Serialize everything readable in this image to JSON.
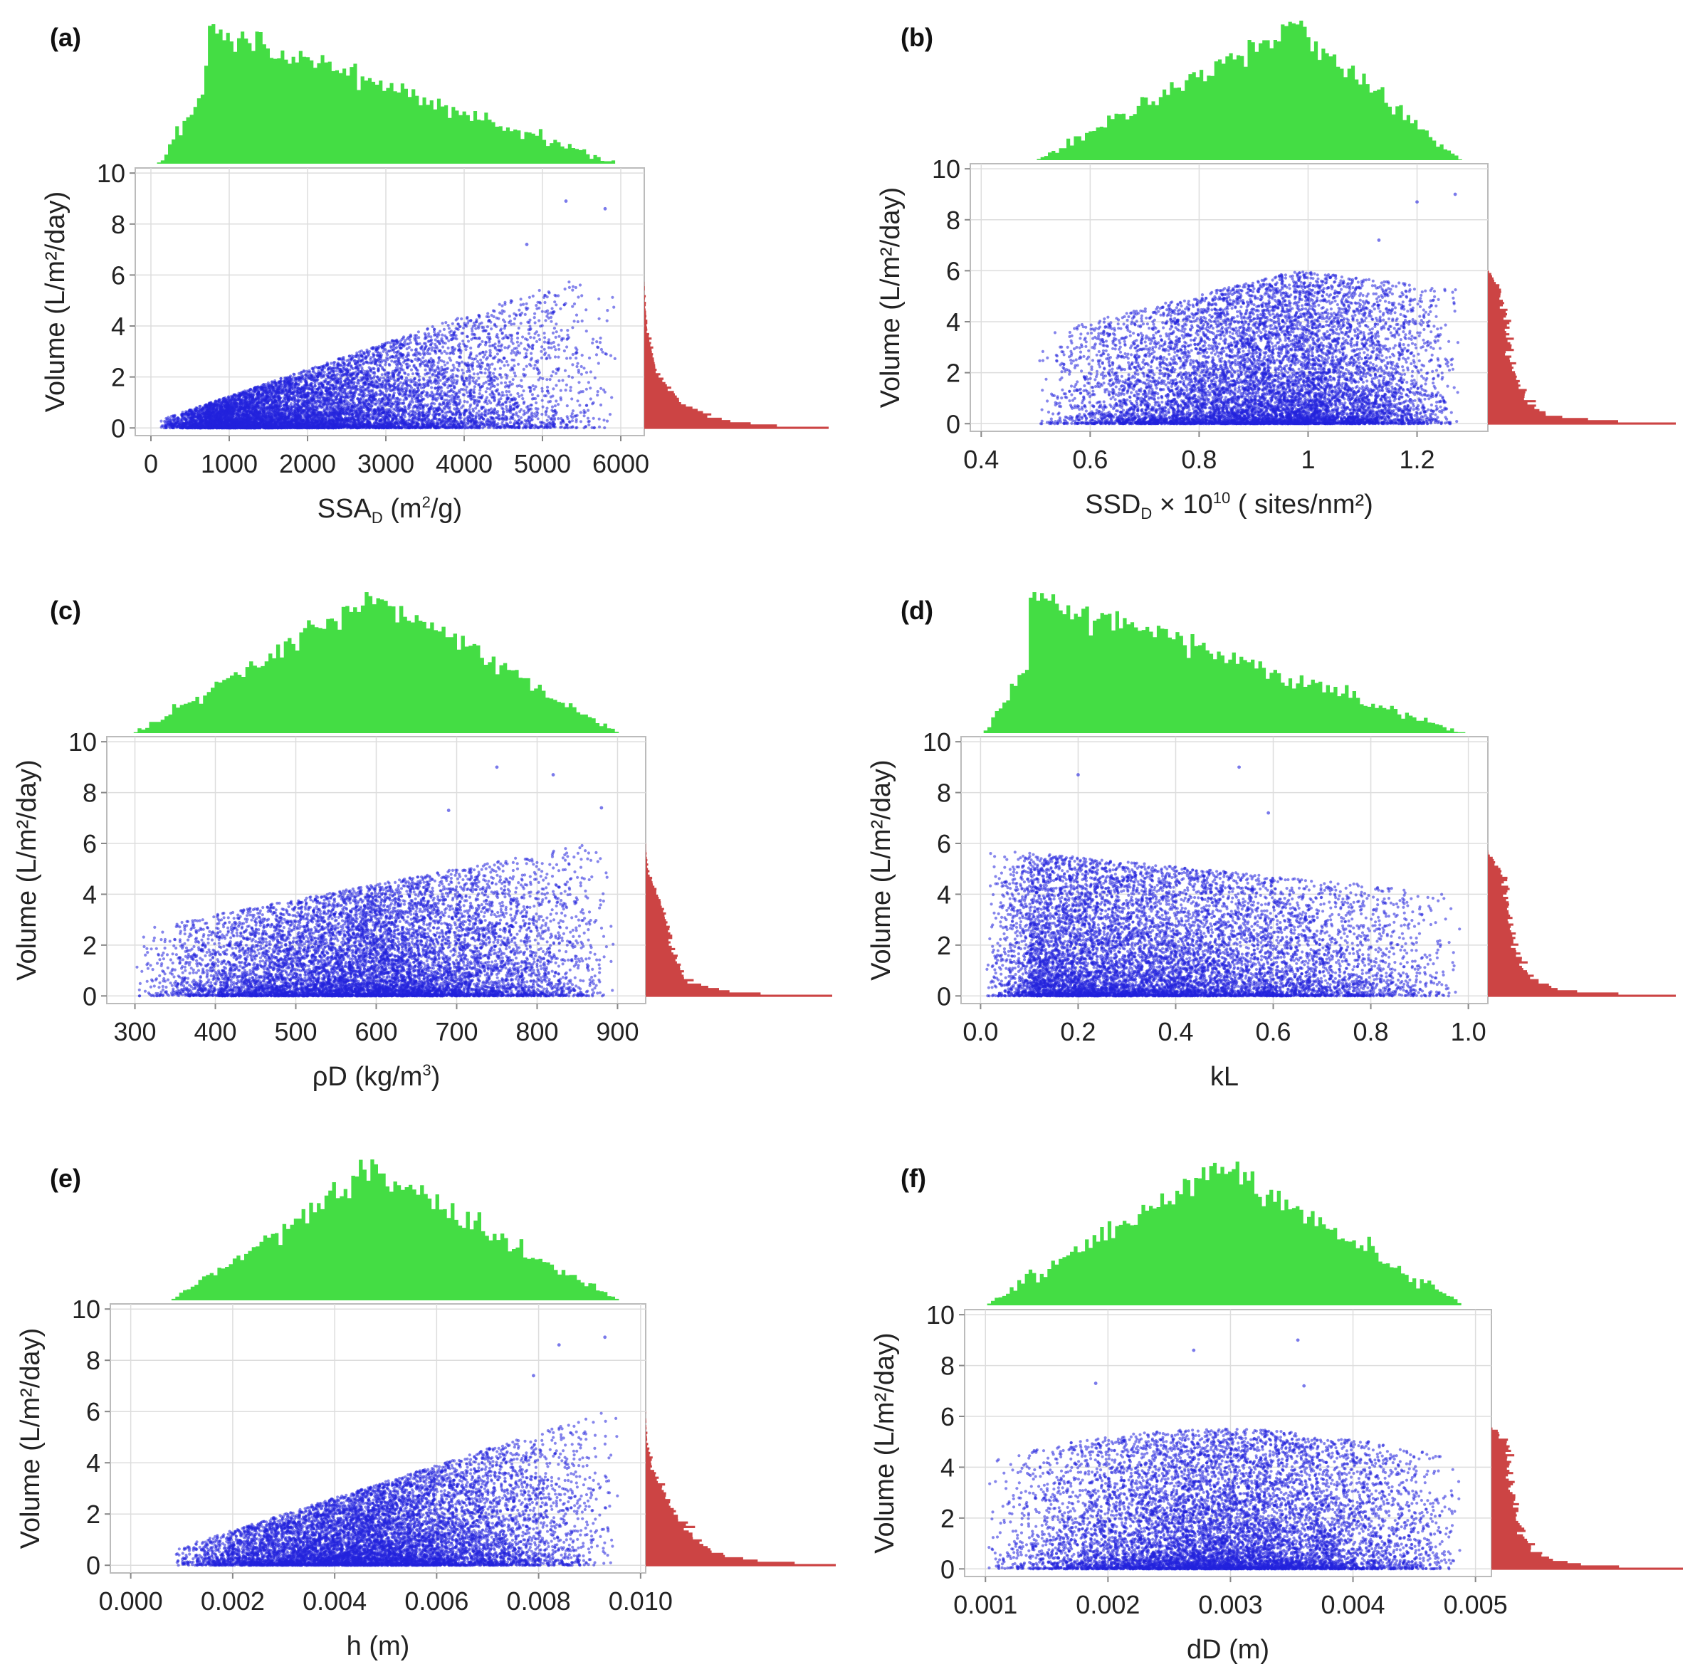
{
  "figure": {
    "description_note": "Six scatter plots with marginal histograms",
    "colors": {
      "scatter": "#2222dd",
      "top_hist": "#44dd44",
      "right_hist": "#cc4444",
      "grid": "#dddddd",
      "frame": "#bbbbbb"
    }
  },
  "chart_data": [
    {
      "type": "scatter",
      "panel_label": "(a)",
      "xlabel": {
        "main": "SSA",
        "sub": "D",
        "rest": " (m",
        "sup": "2",
        "end": "/g)"
      },
      "ylabel": "Volume (L/m²/day)",
      "xlim": [
        -200,
        6300
      ],
      "ylim": [
        -0.3,
        10.2
      ],
      "xticks": [
        0,
        1000,
        2000,
        3000,
        4000,
        5000,
        6000
      ],
      "xtick_labels": [
        "0",
        "1000",
        "2000",
        "3000",
        "4000",
        "5000",
        "6000"
      ],
      "yticks": [
        0,
        2,
        4,
        6,
        8,
        10
      ],
      "ytick_labels": [
        "0",
        "2",
        "4",
        "6",
        "8",
        "10"
      ],
      "x_range": [
        100,
        6000
      ],
      "y_model": {
        "kind": "linear",
        "x0": 100,
        "x1": 6000,
        "ymax0": 0.3,
        "ymax1": 6.5,
        "skew": 1.8
      },
      "top_hist_shape": {
        "kind": "decreasing",
        "start": 100,
        "mode": 700,
        "end": 5950
      },
      "outliers": [
        [
          5300,
          8.9
        ],
        [
          5800,
          8.6
        ],
        [
          4800,
          7.2
        ]
      ]
    },
    {
      "type": "scatter",
      "panel_label": "(b)",
      "xlabel": {
        "main": "SSD",
        "sub": "D",
        "rest": " × 10",
        "sup": "10",
        "end": " ( sites/nm²)"
      },
      "ylabel": "Volume (L/m²/day)",
      "xlim": [
        0.38,
        1.33
      ],
      "ylim": [
        -0.3,
        10.2
      ],
      "xticks": [
        0.4,
        0.6,
        0.8,
        1.0,
        1.2
      ],
      "xtick_labels": [
        "0.4",
        "0.6",
        "0.8",
        "1",
        "1.2"
      ],
      "yticks": [
        0,
        2,
        4,
        6,
        8,
        10
      ],
      "ytick_labels": [
        "0",
        "2",
        "4",
        "6",
        "8",
        "10"
      ],
      "x_range": [
        0.5,
        1.28
      ],
      "y_model": {
        "kind": "triangle-weighted",
        "ymax0": 3.5,
        "ymax1": 6.0,
        "skew": 2.0
      },
      "top_hist_shape": {
        "kind": "triangle",
        "start": 0.5,
        "mode": 0.98,
        "end": 1.28
      },
      "outliers": [
        [
          1.27,
          9.0
        ],
        [
          1.2,
          8.7
        ],
        [
          1.13,
          7.2
        ]
      ]
    },
    {
      "type": "scatter",
      "panel_label": "(c)",
      "xlabel": {
        "main": "ρD (kg/m",
        "sub": "",
        "rest": "",
        "sup": "3",
        "end": ")"
      },
      "ylabel": "Volume (L/m²/day)",
      "xlim": [
        265,
        935
      ],
      "ylim": [
        -0.3,
        10.2
      ],
      "xticks": [
        300,
        400,
        500,
        600,
        700,
        800,
        900
      ],
      "xtick_labels": [
        "300",
        "400",
        "500",
        "600",
        "700",
        "800",
        "900"
      ],
      "yticks": [
        0,
        2,
        4,
        6,
        8,
        10
      ],
      "ytick_labels": [
        "0",
        "2",
        "4",
        "6",
        "8",
        "10"
      ],
      "x_range": [
        300,
        900
      ],
      "y_model": {
        "kind": "linear",
        "x0": 300,
        "x1": 900,
        "ymax0": 2.6,
        "ymax1": 6.2,
        "skew": 2.0
      },
      "top_hist_shape": {
        "kind": "triangle",
        "start": 300,
        "mode": 600,
        "end": 900
      },
      "outliers": [
        [
          750,
          9.0
        ],
        [
          820,
          8.7
        ],
        [
          880,
          7.4
        ],
        [
          690,
          7.3
        ]
      ]
    },
    {
      "type": "scatter",
      "panel_label": "(d)",
      "xlabel": {
        "main": "kL",
        "sub": "",
        "rest": "",
        "sup": "",
        "end": ""
      },
      "ylabel": "Volume (L/m²/day)",
      "xlim": [
        -0.04,
        1.04
      ],
      "ylim": [
        -0.3,
        10.2
      ],
      "xticks": [
        0.0,
        0.2,
        0.4,
        0.6,
        0.8,
        1.0
      ],
      "xtick_labels": [
        "0.0",
        "0.2",
        "0.4",
        "0.6",
        "0.8",
        "1.0"
      ],
      "yticks": [
        0,
        2,
        4,
        6,
        8,
        10
      ],
      "ytick_labels": [
        "0",
        "2",
        "4",
        "6",
        "8",
        "10"
      ],
      "x_range": [
        0.01,
        0.99
      ],
      "y_model": {
        "kind": "linear",
        "x0": 0.01,
        "x1": 0.99,
        "ymax0": 5.8,
        "ymax1": 4.0,
        "skew": 2.0
      },
      "top_hist_shape": {
        "kind": "decreasing",
        "start": 0.01,
        "mode": 0.1,
        "end": 0.99
      },
      "outliers": [
        [
          0.2,
          8.7
        ],
        [
          0.53,
          9.0
        ],
        [
          0.59,
          7.2
        ]
      ]
    },
    {
      "type": "scatter",
      "panel_label": "(e)",
      "xlabel": {
        "main": "h (m)",
        "sub": "",
        "rest": "",
        "sup": "",
        "end": ""
      },
      "ylabel": "Volume (L/m²/day)",
      "xlim": [
        -0.0004,
        0.0101
      ],
      "ylim": [
        -0.3,
        10.2
      ],
      "xticks": [
        0.0,
        0.002,
        0.004,
        0.006,
        0.008,
        0.01
      ],
      "xtick_labels": [
        "0.000",
        "0.002",
        "0.004",
        "0.006",
        "0.008",
        "0.010"
      ],
      "yticks": [
        0,
        2,
        4,
        6,
        8,
        10
      ],
      "ytick_labels": [
        "0",
        "2",
        "4",
        "6",
        "8",
        "10"
      ],
      "x_range": [
        0.0008,
        0.0096
      ],
      "y_model": {
        "kind": "linear",
        "x0": 0.0008,
        "x1": 0.0096,
        "ymax0": 0.6,
        "ymax1": 6.2,
        "skew": 1.8
      },
      "top_hist_shape": {
        "kind": "triangle",
        "start": 0.0008,
        "mode": 0.0047,
        "end": 0.0096
      },
      "outliers": [
        [
          0.0093,
          8.9
        ],
        [
          0.0084,
          8.6
        ],
        [
          0.0079,
          7.4
        ]
      ]
    },
    {
      "type": "scatter",
      "panel_label": "(f)",
      "xlabel": {
        "main": "dD (m)",
        "sub": "",
        "rest": "",
        "sup": "",
        "end": ""
      },
      "ylabel": "Volume (L/m²/day)",
      "xlim": [
        0.00083,
        0.00513
      ],
      "ylim": [
        -0.3,
        10.2
      ],
      "xticks": [
        0.001,
        0.002,
        0.003,
        0.004,
        0.005
      ],
      "xtick_labels": [
        "0.001",
        "0.002",
        "0.003",
        "0.004",
        "0.005"
      ],
      "yticks": [
        0,
        2,
        4,
        6,
        8,
        10
      ],
      "ytick_labels": [
        "0",
        "2",
        "4",
        "6",
        "8",
        "10"
      ],
      "x_range": [
        0.001,
        0.0049
      ],
      "y_model": {
        "kind": "arch",
        "ymax_mid": 5.5,
        "ymax_end": 4.2,
        "skew": 2.0
      },
      "top_hist_shape": {
        "kind": "triangle",
        "start": 0.001,
        "mode": 0.0029,
        "end": 0.0049
      },
      "outliers": [
        [
          0.00355,
          9.0
        ],
        [
          0.0027,
          8.6
        ],
        [
          0.0036,
          7.2
        ],
        [
          0.0019,
          7.3
        ]
      ]
    }
  ]
}
